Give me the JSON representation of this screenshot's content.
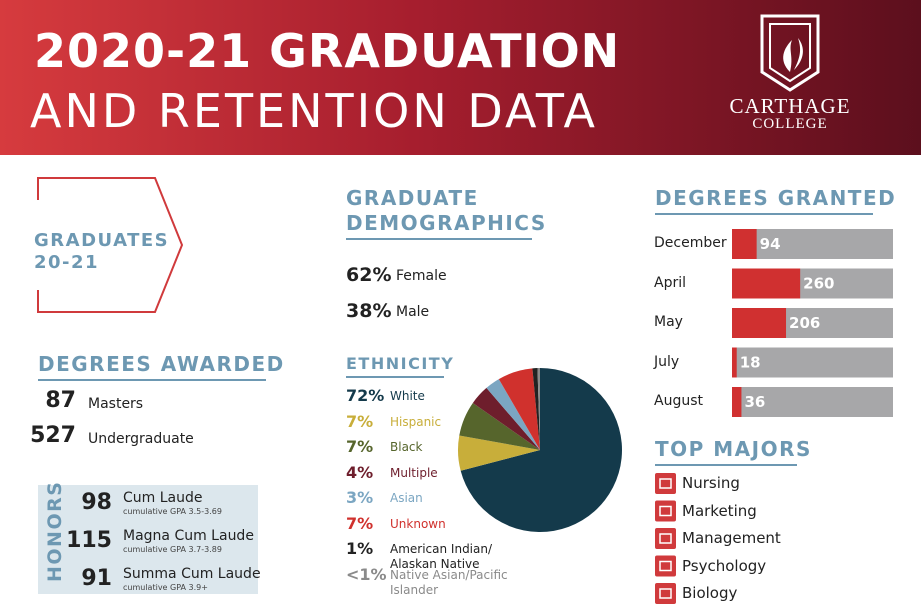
{
  "header": {
    "title_line1": "2020-21 GRADUATION",
    "title_line2": "AND RETENTION DATA",
    "logo_line1": "CARTHAGE",
    "logo_line2": "COLLEGE"
  },
  "graduates": {
    "title_line1": "GRADUATES",
    "title_line2": "20-21"
  },
  "degrees_awarded": {
    "title": "DEGREES AWARDED",
    "items": [
      {
        "value": 87,
        "label": "Masters"
      },
      {
        "value": 527,
        "label": "Undergraduate"
      }
    ]
  },
  "honors": {
    "title": "HONORS",
    "items": [
      {
        "value": 98,
        "label": "Cum Laude",
        "note": "cumulative GPA 3.5-3.69"
      },
      {
        "value": 115,
        "label": "Magna Cum Laude",
        "note": "cumulative GPA 3.7-3.89"
      },
      {
        "value": 91,
        "label": "Summa Cum Laude",
        "note": "cumulative GPA 3.9+"
      }
    ]
  },
  "demographics": {
    "title_line1": "GRADUATE",
    "title_line2": "DEMOGRAPHICS",
    "gender": [
      {
        "value": "62%",
        "label": "Female"
      },
      {
        "value": "38%",
        "label": "Male"
      }
    ]
  },
  "ethnicity": {
    "type": "pie",
    "title": "ETHNICITY",
    "categories": [
      "White",
      "Hispanic",
      "Black",
      "Multiple",
      "Asian",
      "Unknown",
      "American Indian/ Alaskan Native",
      "Native Asian/Pacific Islander"
    ],
    "values": [
      72,
      7,
      7,
      4,
      3,
      7,
      1,
      0.5
    ],
    "value_labels": [
      "72%",
      "7%",
      "7%",
      "4%",
      "3%",
      "7%",
      "1%",
      "<1%"
    ],
    "colors": [
      "#143a4b",
      "#c8ae3a",
      "#56652c",
      "#6e1e2c",
      "#7ba6c2",
      "#d0312d",
      "#222222",
      "#8a8a8a"
    ]
  },
  "degrees_granted": {
    "type": "bar",
    "title": "DEGREES GRANTED",
    "categories": [
      "December",
      "April",
      "May",
      "July",
      "August"
    ],
    "values": [
      94,
      260,
      206,
      18,
      36
    ],
    "xlim": [
      0,
      614
    ],
    "color": "#d03030",
    "track_color": "#a7a7a9"
  },
  "top_majors": {
    "title": "TOP MAJORS",
    "items": [
      "Nursing",
      "Marketing",
      "Management",
      "Psychology",
      "Biology"
    ]
  }
}
